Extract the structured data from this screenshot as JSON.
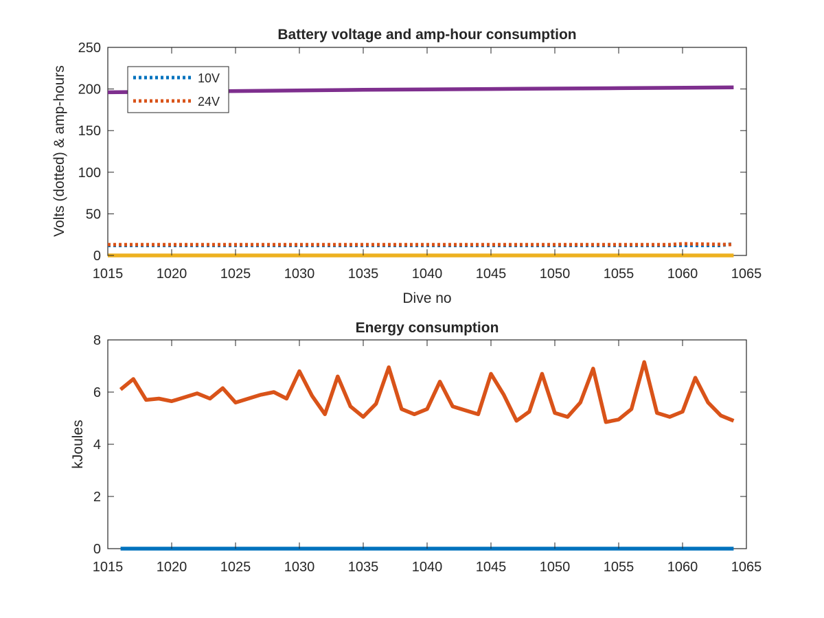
{
  "chart_data": [
    {
      "type": "line",
      "title": "Battery voltage and amp-hour consumption",
      "xlabel": "Dive no",
      "ylabel": "Volts (dotted) & amp-hours",
      "xlim": [
        1015,
        1065
      ],
      "ylim": [
        0,
        250
      ],
      "xticks": [
        "1015",
        "1020",
        "1025",
        "1030",
        "1035",
        "1040",
        "1045",
        "1050",
        "1055",
        "1060",
        "1065"
      ],
      "yticks": [
        "0",
        "50",
        "100",
        "150",
        "200",
        "250"
      ],
      "legend": {
        "placement": "top-left",
        "entries": [
          "10V",
          "24V"
        ]
      },
      "series": [
        {
          "name": "10V",
          "style": "dotted",
          "color": "#0072BD",
          "x": [
            1015,
            1063,
            1064
          ],
          "y": [
            12,
            12,
            14
          ]
        },
        {
          "name": "24V",
          "style": "dotted",
          "color": "#D95319",
          "x": [
            1015,
            1059,
            1060,
            1064
          ],
          "y": [
            13,
            13,
            14,
            13
          ]
        },
        {
          "style": "solid",
          "color": "#EDB120",
          "x": [
            1015,
            1064
          ],
          "y": [
            0,
            0
          ]
        },
        {
          "style": "solid",
          "color": "#7E2F8E",
          "x": [
            1015,
            1025,
            1035,
            1045,
            1055,
            1064
          ],
          "y": [
            196,
            197.5,
            199,
            200,
            201,
            202
          ]
        }
      ]
    },
    {
      "type": "line",
      "title": "Energy consumption",
      "xlabel": "",
      "ylabel": "kJoules",
      "xlim": [
        1015,
        1065
      ],
      "ylim": [
        0,
        8
      ],
      "xticks": [
        "1015",
        "1020",
        "1025",
        "1030",
        "1035",
        "1040",
        "1045",
        "1050",
        "1055",
        "1060",
        "1065"
      ],
      "yticks": [
        "0",
        "2",
        "4",
        "6",
        "8"
      ],
      "series": [
        {
          "style": "solid",
          "color": "#0072BD",
          "x": [
            1016,
            1064
          ],
          "y": [
            0,
            0
          ]
        },
        {
          "style": "solid",
          "color": "#D95319",
          "x": [
            1016,
            1017,
            1018,
            1019,
            1020,
            1021,
            1022,
            1023,
            1024,
            1025,
            1026,
            1027,
            1028,
            1029,
            1030,
            1031,
            1032,
            1033,
            1034,
            1035,
            1036,
            1037,
            1038,
            1039,
            1040,
            1041,
            1042,
            1043,
            1044,
            1045,
            1046,
            1047,
            1048,
            1049,
            1050,
            1051,
            1052,
            1053,
            1054,
            1055,
            1056,
            1057,
            1058,
            1059,
            1060,
            1061,
            1062,
            1063,
            1064
          ],
          "y": [
            6.1,
            6.5,
            5.7,
            5.75,
            5.65,
            5.8,
            5.95,
            5.75,
            6.15,
            5.6,
            5.75,
            5.9,
            6.0,
            5.75,
            6.8,
            5.85,
            5.15,
            6.6,
            5.45,
            5.05,
            5.55,
            6.95,
            5.35,
            5.15,
            5.35,
            6.4,
            5.45,
            5.3,
            5.15,
            6.7,
            5.9,
            4.9,
            5.25,
            6.7,
            5.2,
            5.05,
            5.6,
            6.9,
            4.85,
            4.95,
            5.35,
            7.15,
            5.2,
            5.05,
            5.25,
            6.55,
            5.6,
            5.1,
            4.9
          ]
        }
      ]
    }
  ]
}
